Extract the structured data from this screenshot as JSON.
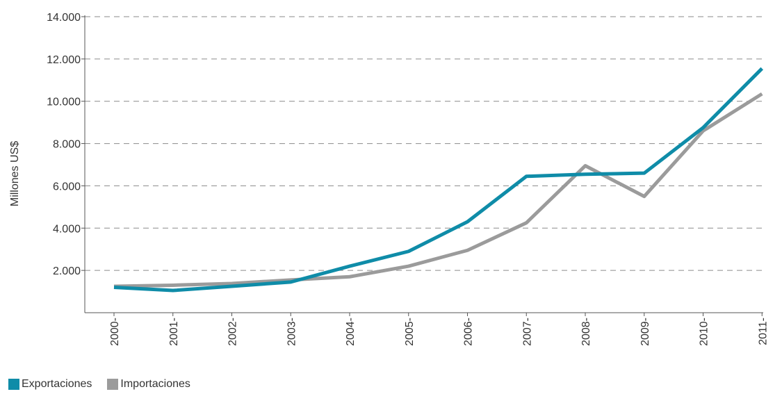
{
  "chart_data": {
    "type": "line",
    "ylabel": "Millones US$",
    "xlabel": "",
    "ylim": [
      0,
      14000
    ],
    "y_ticks": [
      2000,
      4000,
      6000,
      8000,
      10000,
      12000,
      14000
    ],
    "y_tick_labels": [
      "2.000",
      "4.000",
      "6.000",
      "8.000",
      "10.000",
      "12.000",
      "14.000"
    ],
    "categories": [
      "2000",
      "2001",
      "2002",
      "2003",
      "2004",
      "2005",
      "2006",
      "2007",
      "2008",
      "2009",
      "2010",
      "2011"
    ],
    "grid": "horizontal dashed",
    "legend_position": "bottom-left",
    "series": [
      {
        "name": "Exportaciones",
        "color": "#0F8CA8",
        "values": [
          1200,
          1050,
          1250,
          1450,
          2200,
          2900,
          4300,
          6450,
          6550,
          6600,
          8750,
          11550
        ]
      },
      {
        "name": "Importaciones",
        "color": "#9B9B9B",
        "values": [
          1250,
          1300,
          1380,
          1550,
          1700,
          2200,
          2950,
          4250,
          6950,
          5500,
          8600,
          10350
        ]
      }
    ]
  }
}
